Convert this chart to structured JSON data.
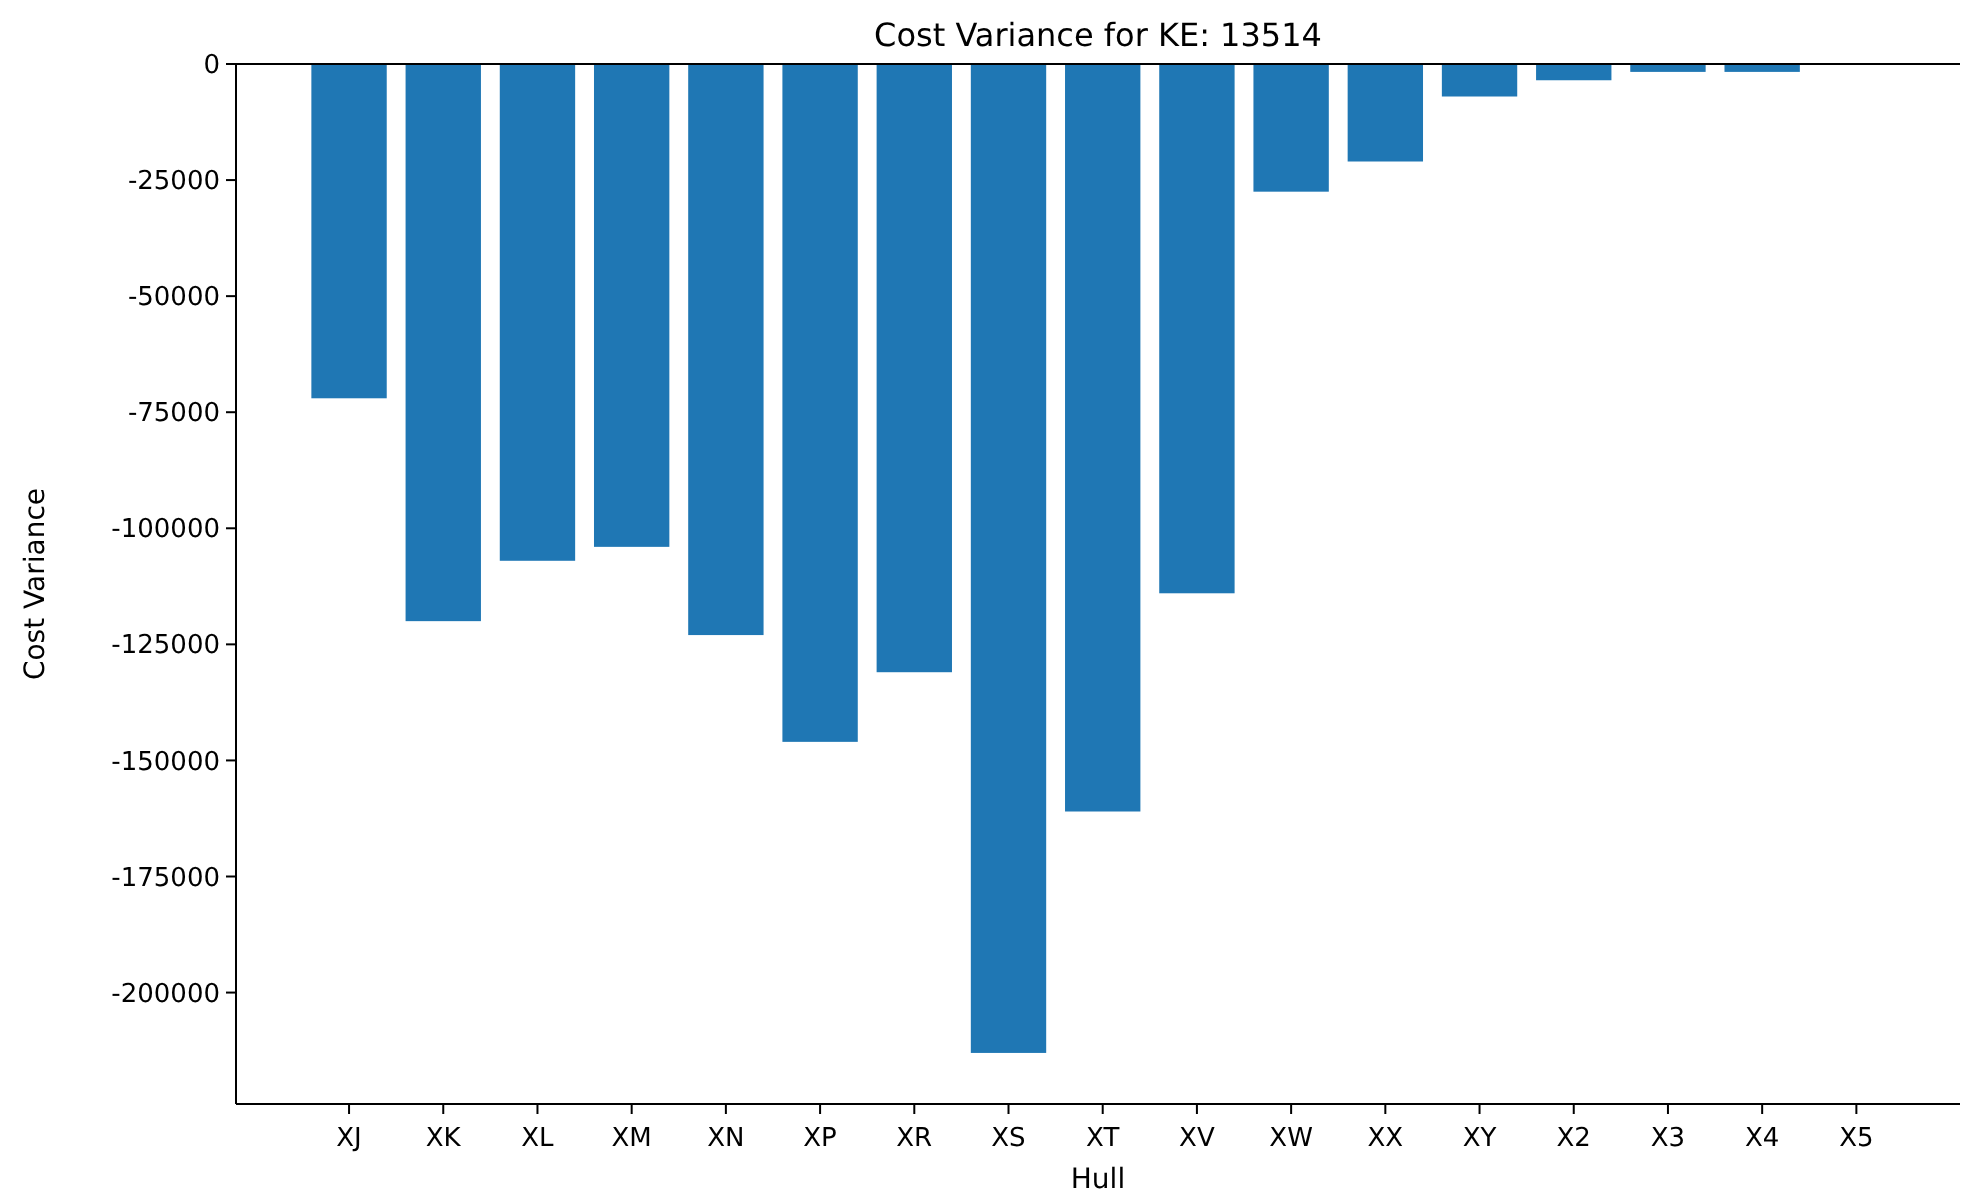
{
  "chart_data": {
    "type": "bar",
    "title": "Cost Variance for KE: 13514",
    "xlabel": "Hull",
    "ylabel": "Cost Variance",
    "categories": [
      "XJ",
      "XK",
      "XL",
      "XM",
      "XN",
      "XP",
      "XR",
      "XS",
      "XT",
      "XV",
      "XW",
      "XX",
      "XY",
      "X2",
      "X3",
      "X4",
      "X5"
    ],
    "values": [
      -72000,
      -120000,
      -107000,
      -104000,
      -123000,
      -146000,
      -131000,
      -213000,
      -161000,
      -114000,
      -27500,
      -21000,
      -7000,
      -3500,
      -1700,
      -1700,
      0
    ],
    "color": "#1f77b4",
    "ylim": [
      -224000,
      0
    ],
    "yticks": [
      0,
      -25000,
      -50000,
      -75000,
      -100000,
      -125000,
      -150000,
      -175000,
      -200000
    ],
    "grid": false
  }
}
